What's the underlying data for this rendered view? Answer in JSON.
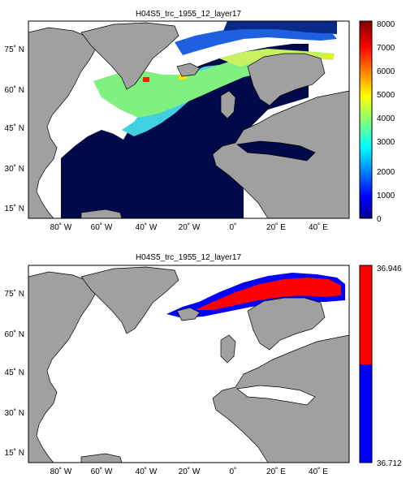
{
  "panels": [
    {
      "title": "H04S5_trc_1955_12_layer17",
      "lat_labels": [
        "75˚ N",
        "60˚ N",
        "45˚ N",
        "30˚ N",
        "15˚ N"
      ],
      "lon_labels": [
        "80˚ W",
        "60˚ W",
        "40˚ W",
        "20˚ W",
        "0˚",
        "20˚ E",
        "40˚ E"
      ],
      "colorbar": {
        "type": "jet",
        "min": 0,
        "max": 8000,
        "ticks": [
          "8000",
          "7000",
          "6000",
          "5000",
          "4000",
          "3000",
          "2000",
          "1000",
          "0"
        ]
      }
    },
    {
      "title": "H04S5_trc_1955_12_layer17",
      "lat_labels": [
        "75˚ N",
        "60˚ N",
        "45˚ N",
        "30˚ N",
        "15˚ N"
      ],
      "lon_labels": [
        "80˚ W",
        "60˚ W",
        "40˚ W",
        "20˚ W",
        "0˚",
        "20˚ E",
        "40˚ E"
      ],
      "colorbar": {
        "type": "binary",
        "colors": [
          "#ff0000",
          "#0000ff"
        ],
        "ticks": [
          "36.946",
          "36.712"
        ]
      }
    }
  ],
  "colors": {
    "land": "#a0a0a0",
    "ocean_missing": "#ffffff",
    "deep_blue": "#000a4a",
    "high_red": "#ff0000",
    "low_blue": "#0000ff"
  }
}
